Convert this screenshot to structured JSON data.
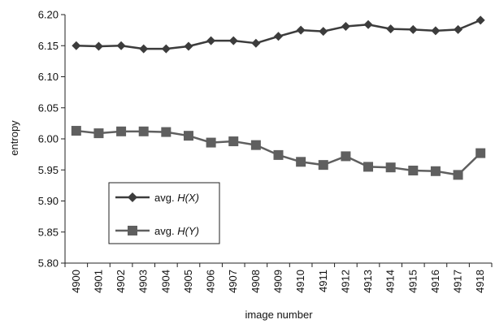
{
  "chart_data": {
    "type": "line",
    "xlabel": "image number",
    "ylabel": "entropy",
    "ylim": [
      5.8,
      6.2
    ],
    "yticks": [
      "6.20",
      "6.15",
      "6.10",
      "6.05",
      "6.00",
      "5.95",
      "5.90",
      "5.85",
      "5.80"
    ],
    "categories": [
      "4900",
      "4901",
      "4902",
      "4903",
      "4904",
      "4905",
      "4906",
      "4907",
      "4908",
      "4909",
      "4910",
      "4911",
      "4912",
      "4913",
      "4914",
      "4915",
      "4916",
      "4917",
      "4918"
    ],
    "grid": false,
    "legend": "lower-left inside",
    "colors": {
      "hx": "#3c3c3c",
      "hy": "#5f5f5f"
    },
    "series": [
      {
        "prefix": "avg. ",
        "name": "H(X)",
        "marker": "diamond",
        "values": [
          6.15,
          6.149,
          6.15,
          6.145,
          6.145,
          6.149,
          6.158,
          6.158,
          6.154,
          6.165,
          6.175,
          6.173,
          6.181,
          6.184,
          6.177,
          6.176,
          6.174,
          6.176,
          6.191
        ]
      },
      {
        "prefix": "avg. ",
        "name": "H(Y)",
        "marker": "square",
        "values": [
          6.013,
          6.009,
          6.012,
          6.012,
          6.011,
          6.005,
          5.994,
          5.996,
          5.99,
          5.974,
          5.963,
          5.958,
          5.972,
          5.955,
          5.954,
          5.949,
          5.948,
          5.942,
          5.977
        ]
      }
    ]
  }
}
